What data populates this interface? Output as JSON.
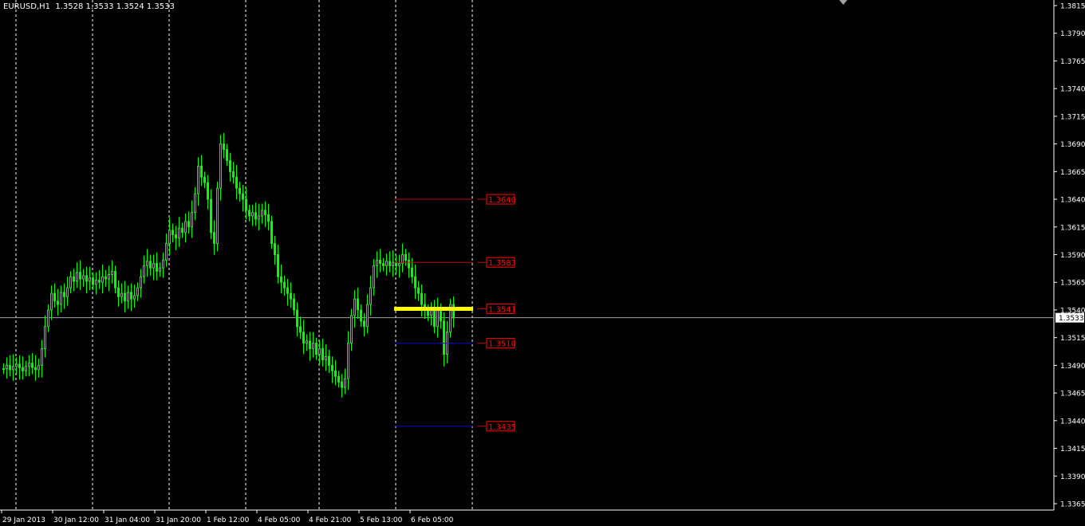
{
  "header": {
    "symbol": "EURUSD,H1",
    "ohlc": "1.3528 1.3533 1.3524 1.3533"
  },
  "colors": {
    "background": "#000000",
    "candles": "#00ff00",
    "grid": "#ffffff",
    "resistance": "#c00000",
    "support": "#0000c8",
    "pivot": "#ffff00",
    "label": "#ff0000"
  },
  "chart_data": {
    "type": "candlestick",
    "ylim": [
      1.3365,
      1.3815
    ],
    "y_ticks": [
      "1.3815",
      "1.3790",
      "1.3765",
      "1.3740",
      "1.3715",
      "1.3690",
      "1.3665",
      "1.3640",
      "1.3615",
      "1.3590",
      "1.3565",
      "1.3540",
      "1.3515",
      "1.3490",
      "1.3465",
      "1.3440",
      "1.3415",
      "1.3390",
      "1.3365"
    ],
    "x_ticks": [
      "29 Jan 2013",
      "30 Jan 12:00",
      "31 Jan 04:00",
      "31 Jan 20:00",
      "1 Feb 12:00",
      "4 Feb 05:00",
      "4 Feb 21:00",
      "5 Feb 13:00",
      "6 Feb 05:00"
    ],
    "timeframe": "H1",
    "current_price": "1.3533",
    "closes": [
      1.3487,
      1.349,
      1.3486,
      1.3489,
      1.3491,
      1.3488,
      1.3485,
      1.3489,
      1.3492,
      1.3488,
      1.3486,
      1.349,
      1.3505,
      1.3525,
      1.354,
      1.3555,
      1.3548,
      1.3545,
      1.3556,
      1.3552,
      1.356,
      1.357,
      1.3566,
      1.3574,
      1.3568,
      1.3571,
      1.3566,
      1.3569,
      1.3563,
      1.3567,
      1.3565,
      1.357,
      1.3568,
      1.3572,
      1.3575,
      1.356,
      1.3552,
      1.3555,
      1.3548,
      1.3556,
      1.355,
      1.3553,
      1.356,
      1.357,
      1.358,
      1.3584,
      1.3578,
      1.3582,
      1.3575,
      1.3578,
      1.3585,
      1.36,
      1.3612,
      1.3608,
      1.3605,
      1.3614,
      1.361,
      1.362,
      1.3615,
      1.3628,
      1.3645,
      1.367,
      1.366,
      1.3655,
      1.364,
      1.361,
      1.36,
      1.365,
      1.369,
      1.3685,
      1.3675,
      1.3665,
      1.366,
      1.365,
      1.3645,
      1.364,
      1.363,
      1.3625,
      1.3628,
      1.3622,
      1.3625,
      1.363,
      1.3626,
      1.362,
      1.36,
      1.359,
      1.357,
      1.3565,
      1.356,
      1.3555,
      1.355,
      1.354,
      1.3525,
      1.352,
      1.351,
      1.3512,
      1.3505,
      1.351,
      1.35,
      1.3505,
      1.3495,
      1.3498,
      1.349,
      1.3485,
      1.348,
      1.3475,
      1.347,
      1.3478,
      1.351,
      1.3535,
      1.355,
      1.354,
      1.353,
      1.3525,
      1.3545,
      1.356,
      1.358,
      1.3585,
      1.3582,
      1.358,
      1.3584,
      1.358,
      1.3583,
      1.358,
      1.3582,
      1.359,
      1.3585,
      1.3578,
      1.357,
      1.356,
      1.3555,
      1.3545,
      1.354,
      1.3535,
      1.354,
      1.3525,
      1.354,
      1.353,
      1.35,
      1.352,
      1.3545,
      1.3533
    ],
    "levels": [
      {
        "price": "1.3640",
        "kind": "resistance"
      },
      {
        "price": "1.3583",
        "kind": "resistance"
      },
      {
        "price": "1.3541",
        "kind": "pivot"
      },
      {
        "price": "1.3510",
        "kind": "support"
      },
      {
        "price": "1.3435",
        "kind": "support"
      }
    ]
  }
}
